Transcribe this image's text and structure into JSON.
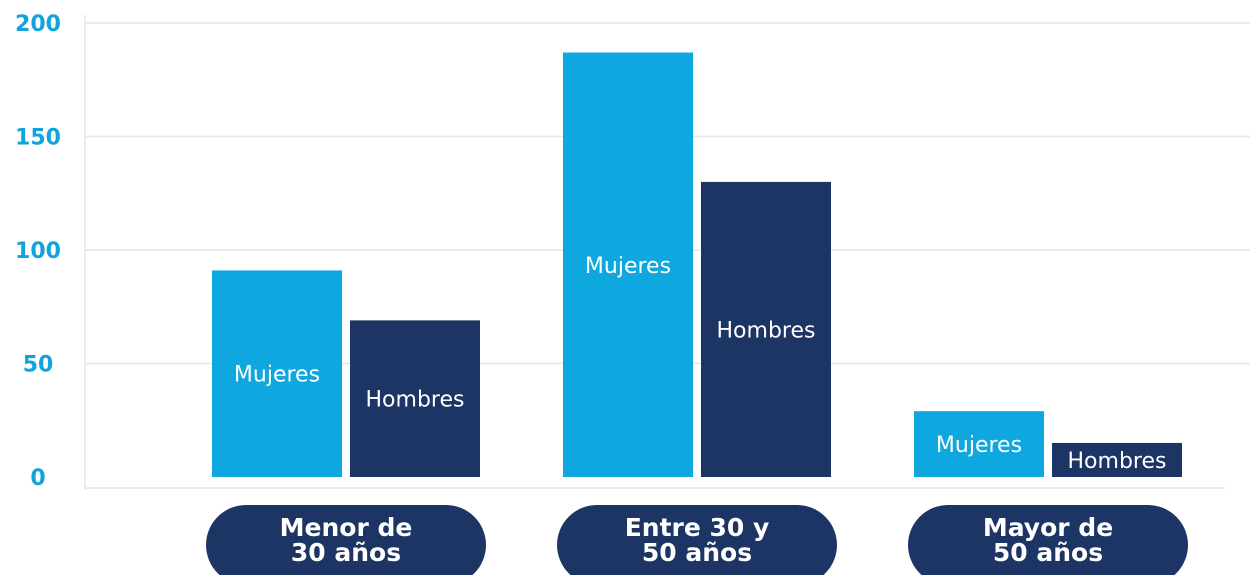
{
  "chart_data": {
    "type": "bar",
    "categories": [
      "Menor de 30 años",
      "Entre 30 y 50 años",
      "Mayor de 50 años"
    ],
    "series": [
      {
        "name": "Mujeres",
        "color": "#0ea7e0",
        "values": [
          91,
          187,
          29
        ]
      },
      {
        "name": "Hombres",
        "color": "#1c3564",
        "values": [
          69,
          130,
          15
        ]
      }
    ],
    "ylim": [
      0,
      200
    ],
    "yticks": [
      0,
      50,
      100,
      150,
      200
    ],
    "grid": true
  }
}
